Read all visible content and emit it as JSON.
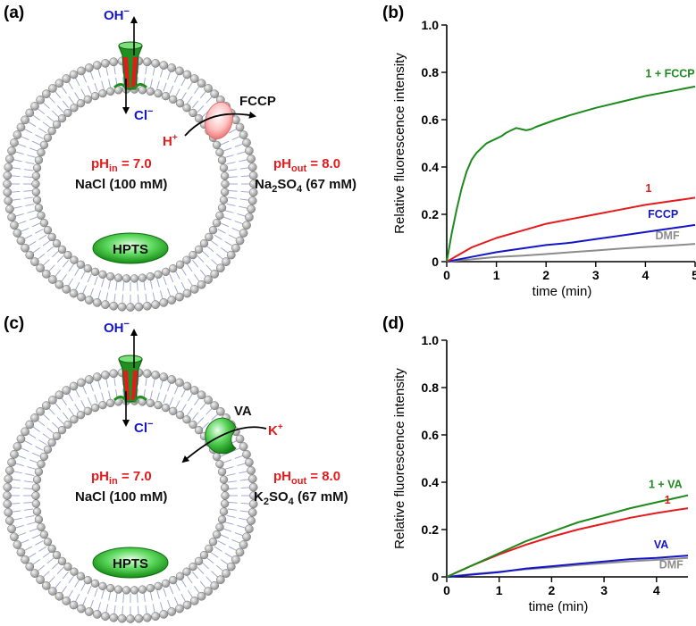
{
  "panels": {
    "a": {
      "label": "(a)",
      "oh_label": "OH",
      "cl_label": "Cl",
      "superscript_minus": "−",
      "carrier_label": "FCCP",
      "ion_label": "H",
      "ion_charge": "+",
      "ph_in_main": "pH",
      "ph_in_sub": "in",
      "ph_in_value": " = 7.0",
      "ph_out_main": "pH",
      "ph_out_sub": "out",
      "ph_out_value": " = 8.0",
      "salt_in": "NaCl (100 mM)",
      "salt_out_parts": [
        "Na",
        "2",
        "SO",
        "4",
        " (67 mM)"
      ],
      "dye": "HPTS"
    },
    "c": {
      "label": "(c)",
      "oh_label": "OH",
      "cl_label": "Cl",
      "superscript_minus": "−",
      "carrier_label": "VA",
      "ion_label": "K",
      "ion_charge": "+",
      "ph_in_main": "pH",
      "ph_in_sub": "in",
      "ph_in_value": " = 7.0",
      "ph_out_main": "pH",
      "ph_out_sub": "out",
      "ph_out_value": " = 8.0",
      "salt_in": "NaCl (100 mM)",
      "salt_out_parts": [
        "K",
        "2",
        "SO",
        "4",
        " (67 mM)"
      ],
      "dye": "HPTS"
    }
  },
  "colors": {
    "green": "#1e8a1e",
    "red": "#e41a1c",
    "blue": "#1515c8",
    "gray": "#8c8c8c",
    "membrane": "#9aa0d0"
  },
  "chart_data": [
    {
      "id": "b",
      "panel_label": "(b)",
      "type": "line",
      "xlabel": "time (min)",
      "ylabel": "Relative fluorescence intensity",
      "xlim": [
        0,
        5
      ],
      "ylim": [
        0,
        1.0
      ],
      "xticks": [
        "0",
        "1",
        "2",
        "3",
        "4",
        "5"
      ],
      "yticks": [
        "0",
        "0.2",
        "0.4",
        "0.6",
        "0.8",
        "1.0"
      ],
      "series": [
        {
          "name": "1 + FCCP",
          "color": "#1e8a1e",
          "x": [
            0,
            0.1,
            0.2,
            0.3,
            0.4,
            0.5,
            0.6,
            0.7,
            0.8,
            0.9,
            1.0,
            1.1,
            1.2,
            1.3,
            1.4,
            1.5,
            1.6,
            1.7,
            1.8,
            2.0,
            2.2,
            2.5,
            3.0,
            3.5,
            4.0,
            4.5,
            5.0
          ],
          "y": [
            0,
            0.12,
            0.22,
            0.31,
            0.38,
            0.43,
            0.46,
            0.48,
            0.5,
            0.51,
            0.52,
            0.53,
            0.545,
            0.555,
            0.565,
            0.56,
            0.555,
            0.56,
            0.57,
            0.585,
            0.6,
            0.62,
            0.65,
            0.675,
            0.7,
            0.72,
            0.74
          ]
        },
        {
          "name": "1",
          "color": "#e41a1c",
          "x": [
            0,
            0.5,
            1.0,
            1.5,
            2.0,
            2.5,
            3.0,
            3.5,
            4.0,
            4.5,
            5.0
          ],
          "y": [
            0,
            0.06,
            0.1,
            0.13,
            0.16,
            0.18,
            0.2,
            0.22,
            0.24,
            0.255,
            0.27
          ]
        },
        {
          "name": "FCCP",
          "color": "#1515c8",
          "x": [
            0,
            0.5,
            1.0,
            1.5,
            2.0,
            2.5,
            3.0,
            3.5,
            4.0,
            4.5,
            5.0
          ],
          "y": [
            0,
            0.02,
            0.04,
            0.055,
            0.07,
            0.08,
            0.095,
            0.11,
            0.125,
            0.14,
            0.155
          ]
        },
        {
          "name": "DMF",
          "color": "#8c8c8c",
          "x": [
            0,
            0.5,
            1.0,
            1.5,
            2.0,
            2.5,
            3.0,
            3.5,
            4.0,
            4.5,
            5.0
          ],
          "y": [
            0,
            0.01,
            0.02,
            0.025,
            0.032,
            0.04,
            0.047,
            0.055,
            0.062,
            0.068,
            0.075
          ]
        }
      ],
      "labels": [
        {
          "text": "1 + FCCP",
          "color": "#1e8a1e",
          "x": 4.0,
          "y": 0.78
        },
        {
          "text": "1",
          "color": "#e41a1c",
          "x": 4.0,
          "y": 0.295
        },
        {
          "text": "FCCP",
          "color": "#1515c8",
          "x": 4.05,
          "y": 0.185
        },
        {
          "text": "DMF",
          "color": "#8c8c8c",
          "x": 4.2,
          "y": 0.095
        }
      ]
    },
    {
      "id": "d",
      "panel_label": "(d)",
      "type": "line",
      "xlabel": "time (min)",
      "ylabel": "Relative fluorescence intensity",
      "xlim": [
        0,
        4.6
      ],
      "ylim": [
        0,
        1.0
      ],
      "xticks": [
        "0",
        "1",
        "2",
        "3",
        "4"
      ],
      "xtick_values": [
        0,
        1,
        2,
        3,
        4
      ],
      "yticks": [
        "0",
        "0.2",
        "0.4",
        "0.6",
        "0.8",
        "1.0"
      ],
      "series": [
        {
          "name": "1 + VA",
          "color": "#1e8a1e",
          "x": [
            0,
            0.5,
            1.0,
            1.5,
            2.0,
            2.5,
            3.0,
            3.5,
            4.0,
            4.6
          ],
          "y": [
            0,
            0.05,
            0.1,
            0.15,
            0.19,
            0.23,
            0.26,
            0.29,
            0.315,
            0.345
          ]
        },
        {
          "name": "1",
          "color": "#e41a1c",
          "x": [
            0,
            0.5,
            1.0,
            1.5,
            2.0,
            2.5,
            3.0,
            3.5,
            4.0,
            4.6
          ],
          "y": [
            0,
            0.05,
            0.095,
            0.135,
            0.17,
            0.2,
            0.225,
            0.25,
            0.27,
            0.29
          ]
        },
        {
          "name": "VA",
          "color": "#1515c8",
          "x": [
            0,
            0.5,
            1.0,
            1.5,
            2.0,
            2.5,
            3.0,
            3.5,
            4.0,
            4.6
          ],
          "y": [
            0,
            0.01,
            0.02,
            0.035,
            0.045,
            0.055,
            0.065,
            0.075,
            0.08,
            0.09
          ]
        },
        {
          "name": "DMF",
          "color": "#8c8c8c",
          "x": [
            0,
            0.5,
            1.0,
            1.5,
            2.0,
            2.5,
            3.0,
            3.5,
            4.0,
            4.6
          ],
          "y": [
            0,
            0.012,
            0.022,
            0.032,
            0.04,
            0.05,
            0.058,
            0.066,
            0.072,
            0.08
          ]
        }
      ],
      "labels": [
        {
          "text": "1 + VA",
          "color": "#1e8a1e",
          "x": 3.85,
          "y": 0.375
        },
        {
          "text": "1",
          "color": "#e41a1c",
          "x": 4.15,
          "y": 0.31
        },
        {
          "text": "VA",
          "color": "#1515c8",
          "x": 3.95,
          "y": 0.12
        },
        {
          "text": "DMF",
          "color": "#8c8c8c",
          "x": 4.05,
          "y": 0.035
        }
      ]
    }
  ]
}
